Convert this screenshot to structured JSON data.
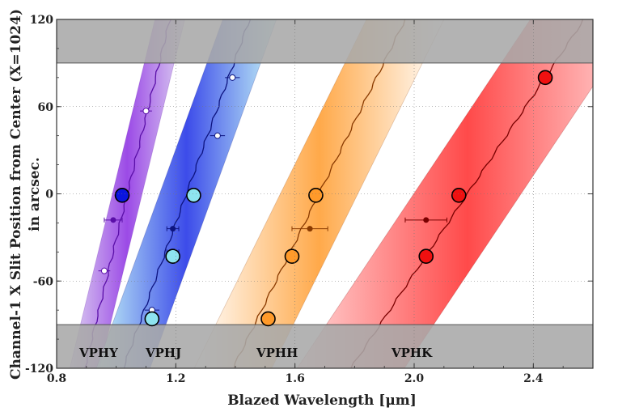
{
  "chart_data": {
    "type": "scatter",
    "title": "",
    "xlabel": "Blazed Wavelength [μm]",
    "ylabel_line1": "Channel-1 X Slit Position from Center (X=1024)",
    "ylabel_line2": "in arcsec.",
    "xlim": [
      0.8,
      2.6
    ],
    "ylim": [
      -120,
      120
    ],
    "xticks": [
      0.8,
      1.2,
      1.6,
      2.0,
      2.4
    ],
    "xtick_labels": [
      "0.8",
      "1.2",
      "1.6",
      "2.0",
      "2.4"
    ],
    "yticks": [
      -120,
      -60,
      0,
      60,
      120
    ],
    "ytick_labels": [
      "-120",
      "-60",
      "0",
      "60",
      "120"
    ],
    "excluded_regions": [
      {
        "y_from": 90,
        "y_to": 120
      },
      {
        "y_from": -120,
        "y_to": -90
      }
    ],
    "bands": [
      {
        "name": "VPHY",
        "color": "#8a2be2",
        "pale": "#d6c8ee",
        "line_color": "#5a0fa8",
        "center_line": [
          [
            0.93,
            -90
          ],
          [
            1.18,
            120
          ]
        ],
        "half_width": 0.05,
        "open_points": [
          [
            0.96,
            -53
          ],
          [
            1.1,
            57
          ]
        ],
        "filled_points": [
          [
            0.99,
            -18
          ]
        ],
        "filled_xerr": 0.03,
        "open_xerr": 0.02,
        "big_points": [
          [
            1.02,
            -1
          ]
        ],
        "big_fill": "#0a14e0"
      },
      {
        "name": "VPHJ",
        "color": "#1a2ce6",
        "pale": "#b8f0f4",
        "line_color": "#0d1480",
        "center_line": [
          [
            1.05,
            -105
          ],
          [
            1.43,
            110
          ]
        ],
        "half_width": 0.09,
        "open_points": [
          [
            1.12,
            -80
          ],
          [
            1.34,
            40
          ],
          [
            1.39,
            80
          ]
        ],
        "filled_points": [
          [
            1.19,
            -24
          ],
          [
            1.19,
            -40
          ]
        ],
        "filled_xerr": 0.02,
        "open_xerr": 0.025,
        "big_points": [
          [
            1.12,
            -86
          ],
          [
            1.19,
            -43
          ],
          [
            1.26,
            -1
          ]
        ],
        "big_fill": "#8ee4f0"
      },
      {
        "name": "VPHH",
        "color": "#ff9a2a",
        "pale": "#ffffff",
        "line_color": "#8a3a00",
        "center_line": [
          [
            1.44,
            -100
          ],
          [
            1.97,
            120
          ]
        ],
        "half_width": 0.13,
        "open_points": [],
        "filled_points": [
          [
            1.65,
            -24
          ]
        ],
        "filled_xerr": 0.06,
        "open_xerr": 0.0,
        "big_points": [
          [
            1.51,
            -86
          ],
          [
            1.59,
            -43
          ],
          [
            1.67,
            -1
          ]
        ],
        "big_fill": "#ff9a2a"
      },
      {
        "name": "VPHK",
        "color": "#ff2a2a",
        "pale": "#ffd0d0",
        "line_color": "#7a0000",
        "center_line": [
          [
            1.82,
            -110
          ],
          [
            2.57,
            120
          ]
        ],
        "half_width": 0.18,
        "open_points": [],
        "filled_points": [
          [
            2.04,
            -18
          ]
        ],
        "filled_xerr": 0.07,
        "open_xerr": 0.0,
        "big_points": [
          [
            2.04,
            -43
          ],
          [
            2.15,
            -1
          ],
          [
            2.44,
            80
          ]
        ],
        "big_fill": "#f01010"
      }
    ]
  },
  "labels": {
    "vphy": "VPHY",
    "vphj": "VPHJ",
    "vphh": "VPHH",
    "vphk": "VPHK"
  }
}
